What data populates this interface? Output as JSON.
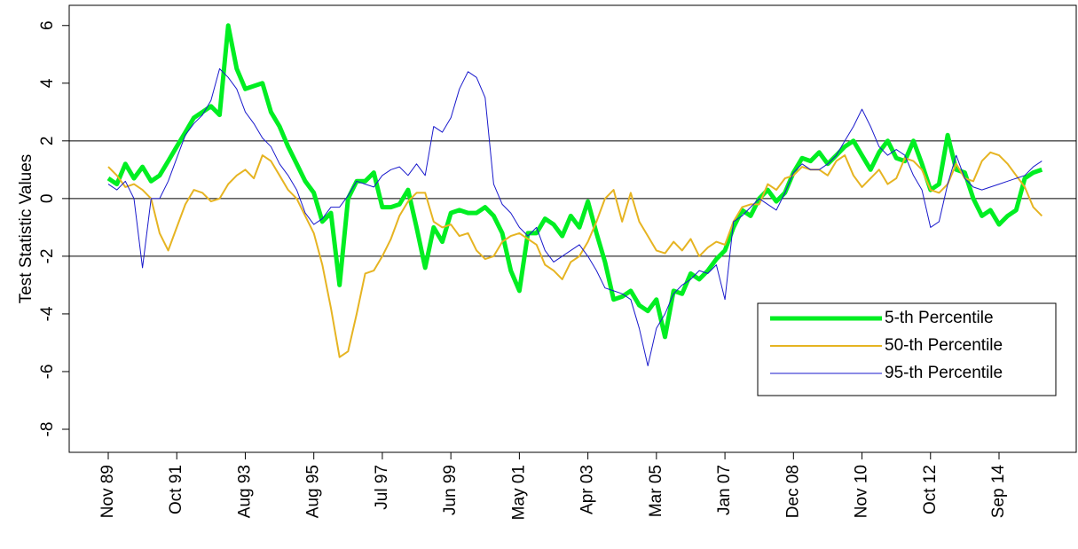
{
  "chart_data": {
    "type": "line",
    "y_label": "Test Statistic Values",
    "categories": [
      "Nov 89",
      null,
      null,
      null,
      null,
      null,
      null,
      null,
      "Oct 91",
      null,
      null,
      null,
      null,
      null,
      null,
      null,
      "Aug 93",
      null,
      null,
      null,
      null,
      null,
      null,
      null,
      "Aug 95",
      null,
      null,
      null,
      null,
      null,
      null,
      null,
      "Jul 97",
      null,
      null,
      null,
      null,
      null,
      null,
      null,
      "Jun 99",
      null,
      null,
      null,
      null,
      null,
      null,
      null,
      "May 01",
      null,
      null,
      null,
      null,
      null,
      null,
      null,
      "Apr 03",
      null,
      null,
      null,
      null,
      null,
      null,
      null,
      "Mar 05",
      null,
      null,
      null,
      null,
      null,
      null,
      null,
      "Jan 07",
      null,
      null,
      null,
      null,
      null,
      null,
      null,
      "Dec 08",
      null,
      null,
      null,
      null,
      null,
      null,
      null,
      "Nov 10",
      null,
      null,
      null,
      null,
      null,
      null,
      null,
      "Oct 12",
      null,
      null,
      null,
      null,
      null,
      null,
      null,
      "Sep 14",
      null,
      null,
      null,
      null,
      null
    ],
    "series": [
      {
        "name": "5-th Percentile",
        "color": "#00ee22",
        "width": 5,
        "values": [
          0.7,
          0.5,
          1.2,
          0.7,
          1.1,
          0.6,
          0.8,
          1.3,
          1.8,
          2.3,
          2.8,
          3.0,
          3.2,
          2.9,
          6.0,
          4.5,
          3.8,
          3.9,
          4.0,
          3.0,
          2.5,
          1.8,
          1.2,
          0.6,
          0.2,
          -0.8,
          -0.5,
          -3.0,
          0.0,
          0.6,
          0.6,
          0.9,
          -0.3,
          -0.3,
          -0.2,
          0.3,
          -1.0,
          -2.4,
          -1.0,
          -1.5,
          -0.5,
          -0.4,
          -0.5,
          -0.5,
          -0.3,
          -0.6,
          -1.2,
          -2.5,
          -3.2,
          -1.2,
          -1.2,
          -0.7,
          -0.9,
          -1.3,
          -0.6,
          -1.0,
          -0.1,
          -1.2,
          -2.2,
          -3.5,
          -3.4,
          -3.2,
          -3.7,
          -3.9,
          -3.5,
          -4.8,
          -3.2,
          -3.3,
          -2.6,
          -2.8,
          -2.5,
          -2.1,
          -1.8,
          -1.0,
          -0.4,
          -0.6,
          0.0,
          0.3,
          -0.1,
          0.2,
          0.9,
          1.4,
          1.3,
          1.6,
          1.2,
          1.5,
          1.8,
          2.0,
          1.5,
          1.0,
          1.6,
          2.0,
          1.4,
          1.3,
          2.0,
          1.2,
          0.3,
          0.5,
          2.2,
          1.0,
          0.9,
          0.0,
          -0.6,
          -0.4,
          -0.9,
          -0.6,
          -0.4,
          0.7,
          0.9,
          1.0
        ]
      },
      {
        "name": "50-th Percentile",
        "color": "#e6b422",
        "width": 2,
        "values": [
          1.1,
          0.8,
          0.4,
          0.5,
          0.3,
          0.0,
          -1.2,
          -1.8,
          -1.0,
          -0.2,
          0.3,
          0.2,
          -0.1,
          0.0,
          0.5,
          0.8,
          1.0,
          0.7,
          1.5,
          1.3,
          0.8,
          0.3,
          0.0,
          -0.6,
          -1.2,
          -2.3,
          -3.8,
          -5.5,
          -5.3,
          -4.0,
          -2.6,
          -2.5,
          -2.0,
          -1.4,
          -0.6,
          -0.1,
          0.2,
          0.2,
          -0.8,
          -1.0,
          -0.9,
          -1.3,
          -1.2,
          -1.8,
          -2.1,
          -2.0,
          -1.5,
          -1.3,
          -1.2,
          -1.4,
          -1.6,
          -2.3,
          -2.5,
          -2.8,
          -2.2,
          -2.0,
          -1.5,
          -0.8,
          0.0,
          0.3,
          -0.8,
          0.2,
          -0.8,
          -1.3,
          -1.8,
          -1.9,
          -1.5,
          -1.8,
          -1.4,
          -2.0,
          -1.7,
          -1.5,
          -1.6,
          -0.8,
          -0.3,
          -0.2,
          -0.2,
          0.5,
          0.3,
          0.7,
          0.8,
          1.1,
          1.0,
          1.0,
          0.8,
          1.3,
          1.5,
          0.8,
          0.4,
          0.7,
          1.0,
          0.5,
          0.7,
          1.4,
          1.3,
          1.0,
          0.3,
          0.2,
          0.5,
          1.2,
          0.7,
          0.6,
          1.3,
          1.6,
          1.5,
          1.2,
          0.8,
          0.4,
          -0.3,
          -0.6
        ]
      },
      {
        "name": "95-th Percentile",
        "color": "#1a1acc",
        "width": 1,
        "values": [
          0.5,
          0.3,
          0.6,
          0.0,
          -2.4,
          0.0,
          0.0,
          0.6,
          1.4,
          2.2,
          2.6,
          2.9,
          3.4,
          4.5,
          4.2,
          3.8,
          3.0,
          2.6,
          2.1,
          1.8,
          1.2,
          0.8,
          0.3,
          -0.5,
          -0.9,
          -0.7,
          -0.3,
          -0.3,
          0.1,
          0.6,
          0.5,
          0.4,
          0.8,
          1.0,
          1.1,
          0.8,
          1.2,
          0.8,
          2.5,
          2.3,
          2.8,
          3.8,
          4.4,
          4.2,
          3.5,
          0.5,
          -0.2,
          -0.5,
          -1.0,
          -1.3,
          -1.0,
          -1.8,
          -2.2,
          -2.0,
          -1.8,
          -1.6,
          -2.0,
          -2.5,
          -3.1,
          -3.2,
          -3.3,
          -3.5,
          -4.5,
          -5.8,
          -4.5,
          -4.0,
          -3.3,
          -3.0,
          -2.8,
          -2.5,
          -2.6,
          -2.3,
          -3.5,
          -0.8,
          -0.6,
          -0.3,
          0.0,
          -0.2,
          -0.4,
          0.2,
          0.9,
          1.2,
          1.0,
          1.0,
          1.2,
          1.5,
          2.0,
          2.5,
          3.1,
          2.5,
          1.8,
          1.5,
          1.7,
          1.5,
          0.8,
          0.3,
          -1.0,
          -0.8,
          0.5,
          1.5,
          0.7,
          0.4,
          0.3,
          0.4,
          0.5,
          0.6,
          0.7,
          0.8,
          1.1,
          1.3
        ]
      }
    ],
    "ylim": [
      -8.8,
      6.7
    ],
    "yticks": [
      -8,
      -6,
      -4,
      -2,
      0,
      2,
      4,
      6
    ],
    "reference_lines": [
      -2,
      0,
      2
    ],
    "legend": "lower right"
  }
}
